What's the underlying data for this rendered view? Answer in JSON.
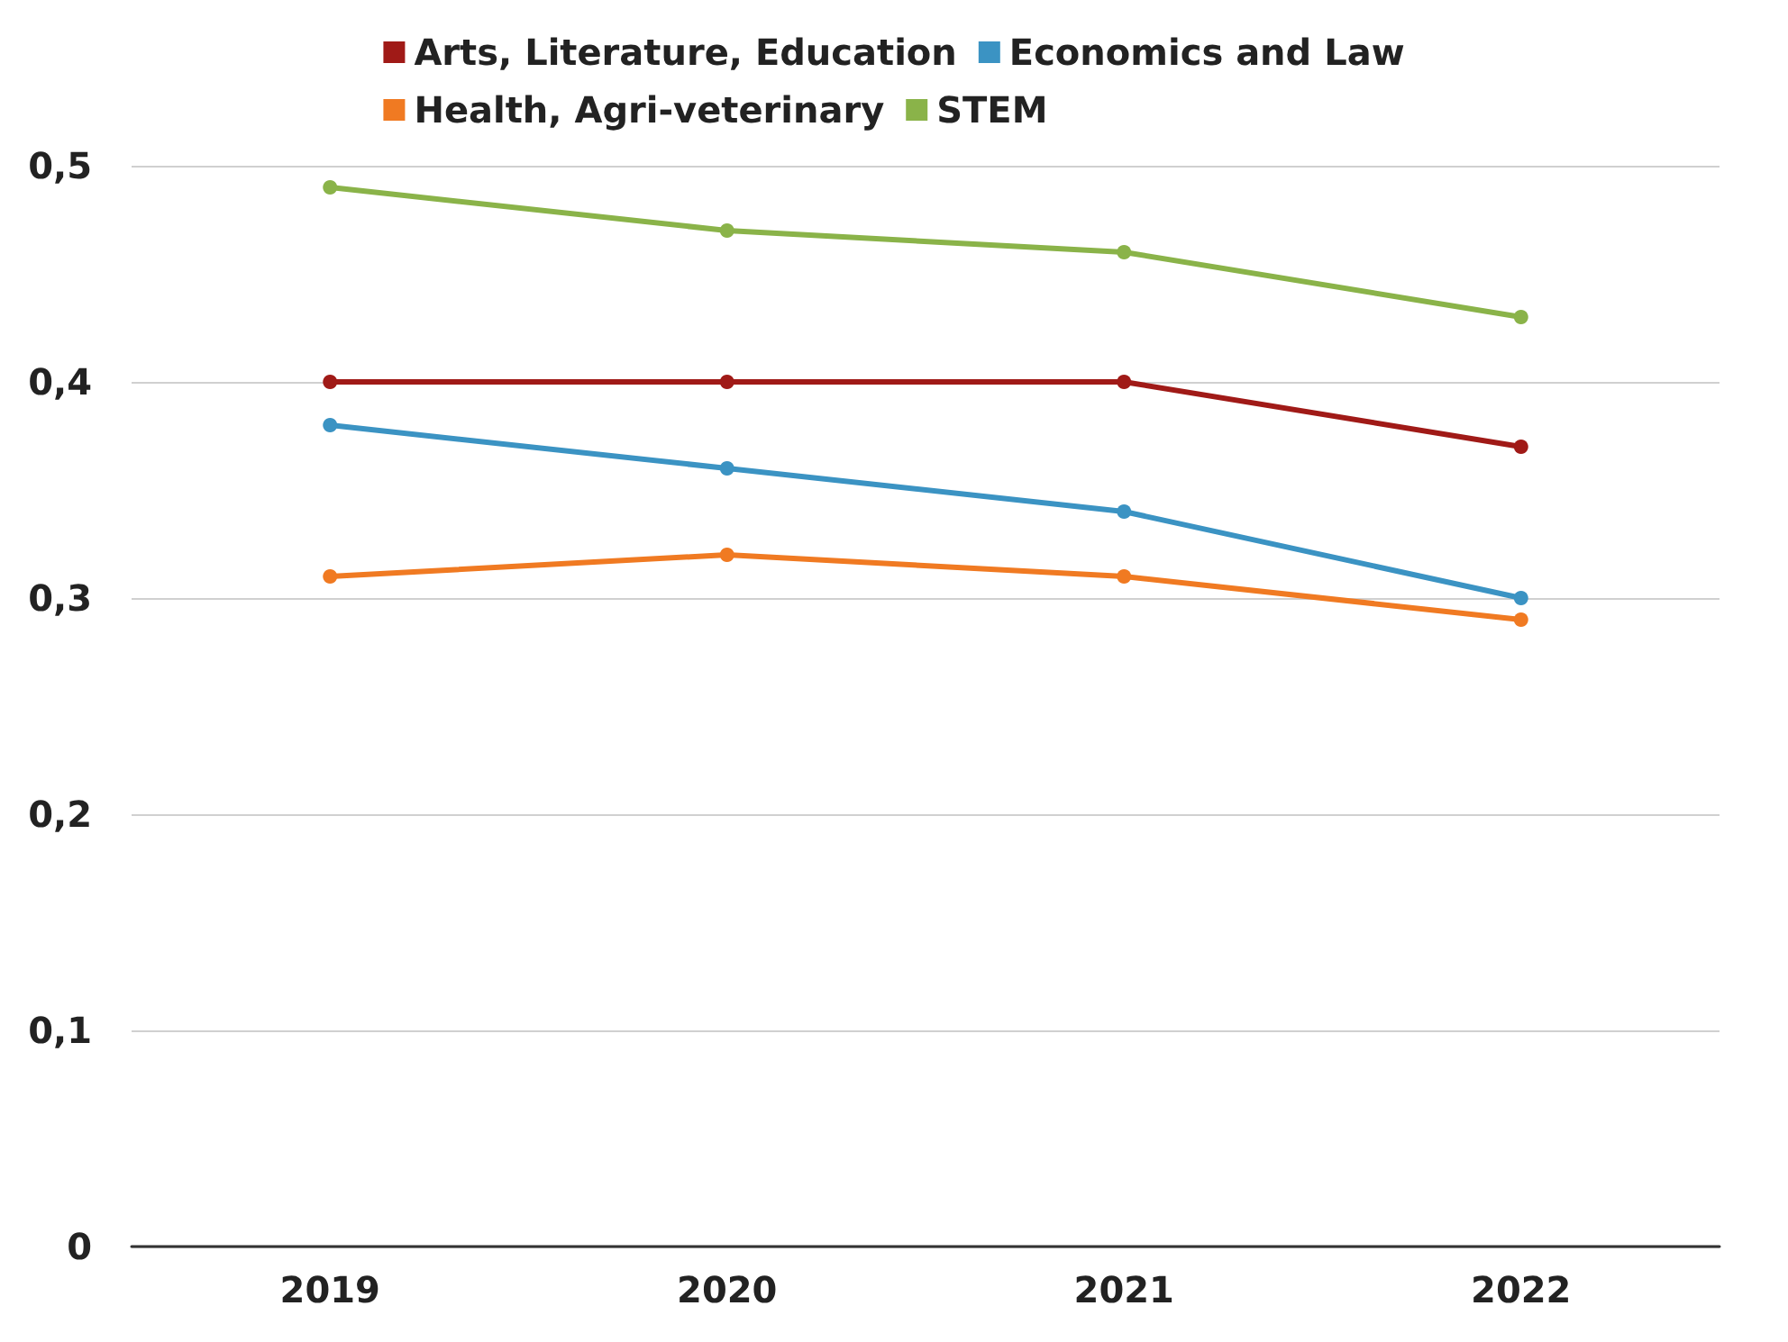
{
  "chart_data": {
    "type": "line",
    "categories": [
      "2019",
      "2020",
      "2021",
      "2022"
    ],
    "series": [
      {
        "name": "Arts, Literature, Education",
        "color": "#a01a17",
        "values": [
          0.4,
          0.4,
          0.4,
          0.37
        ]
      },
      {
        "name": "Economics and Law",
        "color": "#3b93c3",
        "values": [
          0.38,
          0.36,
          0.34,
          0.3
        ]
      },
      {
        "name": "Health, Agri-veterinary",
        "color": "#f07a22",
        "values": [
          0.31,
          0.32,
          0.31,
          0.29
        ]
      },
      {
        "name": "STEM",
        "color": "#8ab349",
        "values": [
          0.49,
          0.47,
          0.46,
          0.43
        ]
      }
    ],
    "ylim": [
      0,
      0.5
    ],
    "yticks": [
      0,
      {
        "value": 0.1,
        "label": "0,1"
      },
      {
        "value": 0.2,
        "label": "0,2"
      },
      {
        "value": 0.3,
        "label": "0,3"
      },
      {
        "value": 0.4,
        "label": "0,4"
      },
      {
        "value": 0.5,
        "label": "0,5"
      }
    ],
    "grid": "y",
    "legend": "top",
    "marker": "circle",
    "line_style": "solid"
  }
}
